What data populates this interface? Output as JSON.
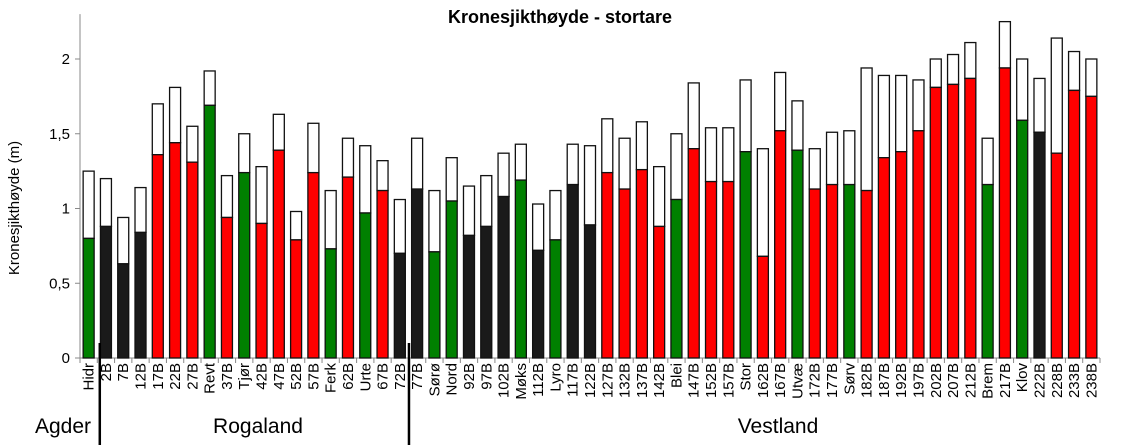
{
  "chart_data": {
    "type": "bar",
    "stacked_overlay": true,
    "title": "Kronesjikthøyde - stortare",
    "xlabel": "",
    "ylabel": "Kronesjikthøyde  (m)",
    "ylim": [
      0,
      2.3
    ],
    "yticks": [
      0,
      0.5,
      1,
      1.5,
      2
    ],
    "ytick_labels": [
      "0",
      "0,5",
      "1",
      "1,5",
      "2"
    ],
    "grid": false,
    "colors": {
      "green": "#008000",
      "black": "#1a1a1a",
      "red": "#ff0000",
      "upper": "#ffffff"
    },
    "categories": [
      "Hidr",
      "2B",
      "7B",
      "12B",
      "17B",
      "22B",
      "27B",
      "Revt",
      "37B",
      "Tjør",
      "42B",
      "47B",
      "52B",
      "57B",
      "Ferk",
      "62B",
      "Urte",
      "67B",
      "72B",
      "77B",
      "Sørø",
      "Nord",
      "92B",
      "97B",
      "102B",
      "Møks",
      "112B",
      "Lyro",
      "117B",
      "122B",
      "127B",
      "132B",
      "137B",
      "142B",
      "Blei",
      "147B",
      "152B",
      "157B",
      "Stor",
      "162B",
      "167B",
      "Utvæ",
      "172B",
      "177B",
      "Sørv",
      "182B",
      "187B",
      "192B",
      "197B",
      "202B",
      "207B",
      "212B",
      "Brem",
      "217B",
      "Klov",
      "222B",
      "228B",
      "233B",
      "238B"
    ],
    "bar_color": [
      "green",
      "black",
      "black",
      "black",
      "red",
      "red",
      "red",
      "green",
      "red",
      "green",
      "red",
      "red",
      "red",
      "red",
      "green",
      "red",
      "green",
      "red",
      "black",
      "black",
      "green",
      "green",
      "black",
      "black",
      "black",
      "green",
      "black",
      "green",
      "black",
      "black",
      "red",
      "red",
      "red",
      "red",
      "green",
      "red",
      "red",
      "red",
      "green",
      "red",
      "red",
      "green",
      "red",
      "red",
      "green",
      "red",
      "red",
      "red",
      "red",
      "red",
      "red",
      "red",
      "green",
      "red",
      "green",
      "black",
      "red",
      "red",
      "red"
    ],
    "series": [
      {
        "name": "lower",
        "values": [
          0.8,
          0.88,
          0.63,
          0.84,
          1.36,
          1.44,
          1.31,
          1.69,
          0.94,
          1.24,
          0.9,
          1.39,
          0.79,
          1.24,
          0.73,
          1.21,
          0.97,
          1.12,
          0.7,
          1.13,
          0.71,
          1.05,
          0.82,
          0.88,
          1.08,
          1.19,
          0.72,
          0.79,
          1.16,
          0.89,
          1.24,
          1.13,
          1.26,
          0.88,
          1.06,
          1.4,
          1.18,
          1.18,
          1.38,
          0.68,
          1.52,
          1.39,
          1.13,
          1.16,
          1.16,
          1.12,
          1.34,
          1.38,
          1.52,
          1.81,
          1.83,
          1.87,
          1.16,
          1.94,
          1.59,
          1.51,
          1.37,
          1.79,
          1.75
        ]
      },
      {
        "name": "total",
        "values": [
          1.25,
          1.2,
          0.94,
          1.14,
          1.7,
          1.81,
          1.55,
          1.92,
          1.22,
          1.5,
          1.28,
          1.63,
          0.98,
          1.57,
          1.12,
          1.47,
          1.42,
          1.32,
          1.06,
          1.47,
          1.12,
          1.34,
          1.15,
          1.22,
          1.37,
          1.43,
          1.03,
          1.12,
          1.43,
          1.42,
          1.6,
          1.47,
          1.58,
          1.28,
          1.5,
          1.84,
          1.54,
          1.54,
          1.86,
          1.4,
          1.91,
          1.72,
          1.4,
          1.51,
          1.52,
          1.94,
          1.89,
          1.89,
          1.86,
          2.0,
          2.03,
          2.11,
          1.47,
          2.25,
          2.0,
          1.87,
          2.14,
          2.05,
          2.0
        ]
      }
    ],
    "regions": [
      {
        "label": "Agder",
        "from": 0,
        "to": 0
      },
      {
        "label": "Rogaland",
        "from": 1,
        "to": 18
      },
      {
        "label": "Vestland",
        "from": 19,
        "to": 58
      }
    ]
  }
}
